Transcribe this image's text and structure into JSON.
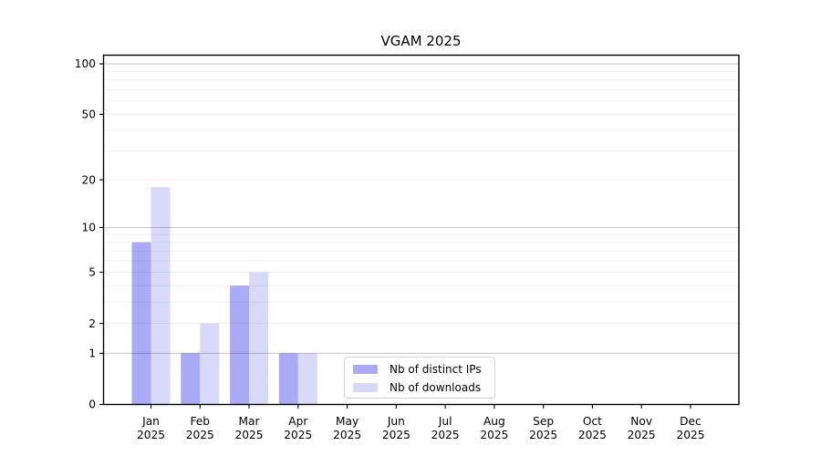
{
  "chart_data": {
    "type": "bar",
    "title": "VGAM 2025",
    "categories": [
      "Jan",
      "Feb",
      "Mar",
      "Apr",
      "May",
      "Jun",
      "Jul",
      "Aug",
      "Sep",
      "Oct",
      "Nov",
      "Dec"
    ],
    "category_year": "2025",
    "series": [
      {
        "name": "Nb of distinct IPs",
        "color": "#aaaaf6",
        "values": [
          8,
          1,
          4,
          1,
          0,
          0,
          0,
          0,
          0,
          0,
          0,
          0
        ]
      },
      {
        "name": "Nb of downloads",
        "color": "#d9d9fa",
        "values": [
          18,
          2,
          5,
          1,
          0,
          0,
          0,
          0,
          0,
          0,
          0,
          0
        ]
      }
    ],
    "yscale": "log1p",
    "ylim": [
      0,
      100
    ],
    "ytick_labels": [
      0,
      1,
      2,
      5,
      10,
      20,
      50,
      100
    ],
    "grid_major_values": [
      1,
      10,
      100
    ],
    "grid_minor_values": [
      2,
      3,
      4,
      5,
      6,
      7,
      8,
      9,
      20,
      30,
      40,
      50,
      60,
      70,
      80,
      90
    ],
    "grid": true,
    "legend_position": "lower-center-left",
    "colors": {
      "spine": "#000000",
      "grid_major": "rgba(0,0,0,0.22)",
      "grid_minor": "rgba(0,0,0,0.06)",
      "tick_label": "#000000"
    }
  }
}
